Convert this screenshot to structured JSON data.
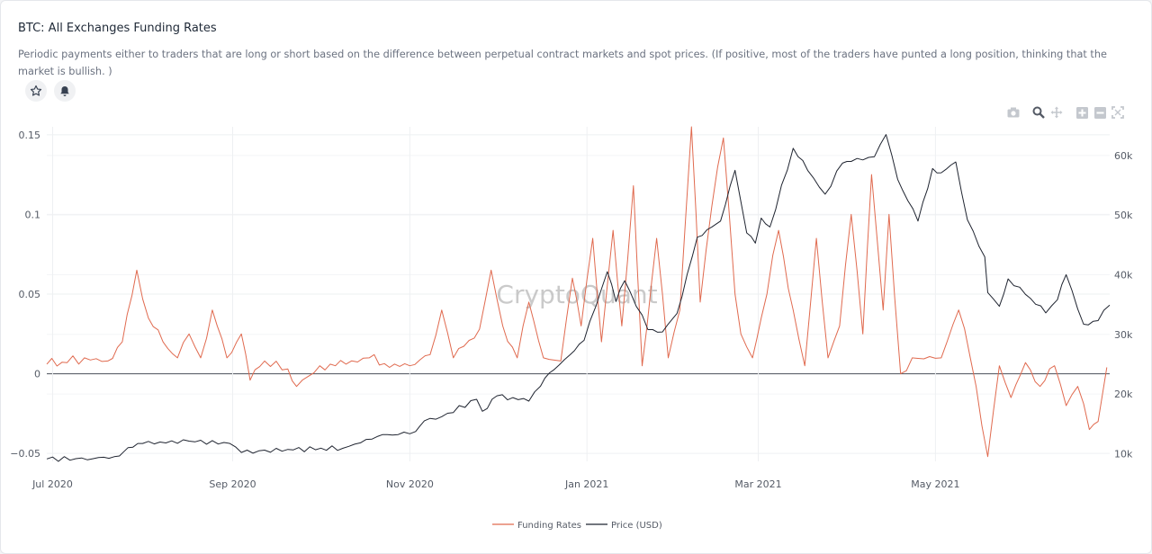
{
  "header": {
    "title": "BTC: All Exchanges Funding Rates",
    "description": "Periodic payments either to traders that are long or short based on the difference between perpetual contract markets and spot prices. (If positive, most of the traders have punted a long position, thinking that the market is bullish. )"
  },
  "actions": {
    "favorite_icon": "star-icon",
    "alert_icon": "bell-icon"
  },
  "toolbar": {
    "icons": [
      "camera-icon",
      "zoom-icon",
      "pan-icon",
      "zoom-in-icon",
      "zoom-out-icon",
      "autoscale-icon"
    ]
  },
  "watermark": "CryptoQuant",
  "colors": {
    "funding": "#e06a4f",
    "price": "#1f2430"
  },
  "chart_data": {
    "type": "line",
    "x_tick_labels": [
      "Jul 2020",
      "Sep 2020",
      "Nov 2020",
      "Jan 2021",
      "Mar 2021",
      "May 2021"
    ],
    "x_tick_dates": [
      "2020-07-01",
      "2020-09-01",
      "2020-11-01",
      "2021-01-01",
      "2021-03-01",
      "2021-05-01"
    ],
    "x_range": [
      "2020-06-29",
      "2021-06-30"
    ],
    "y_left": {
      "ticks": [
        -0.05,
        0,
        0.05,
        0.1,
        0.15
      ],
      "tick_labels": [
        "−0.05",
        "0",
        "0.05",
        "0.1",
        "0.15"
      ],
      "range": [
        -0.055,
        0.155
      ]
    },
    "y_right": {
      "ticks": [
        10000,
        20000,
        30000,
        40000,
        50000,
        60000
      ],
      "tick_labels": [
        "10k",
        "20k",
        "30k",
        "40k",
        "50k",
        "60k"
      ],
      "range": [
        8700,
        64800
      ]
    },
    "grid": true,
    "legend_position": "bottom-center",
    "series": [
      {
        "name": "Funding Rates",
        "axis": "left",
        "points": [
          [
            "2020-06-29",
            0.006
          ],
          [
            "2020-07-06",
            0.007
          ],
          [
            "2020-07-12",
            0.01
          ],
          [
            "2020-07-20",
            0.008
          ],
          [
            "2020-07-25",
            0.02
          ],
          [
            "2020-07-30",
            0.065
          ],
          [
            "2020-08-03",
            0.035
          ],
          [
            "2020-08-08",
            0.02
          ],
          [
            "2020-08-13",
            0.01
          ],
          [
            "2020-08-17",
            0.025
          ],
          [
            "2020-08-21",
            0.01
          ],
          [
            "2020-08-25",
            0.04
          ],
          [
            "2020-08-30",
            0.01
          ],
          [
            "2020-09-04",
            0.025
          ],
          [
            "2020-09-07",
            -0.004
          ],
          [
            "2020-09-12",
            0.008
          ],
          [
            "2020-09-20",
            0.003
          ],
          [
            "2020-09-23",
            -0.008
          ],
          [
            "2020-10-01",
            0.005
          ],
          [
            "2020-10-10",
            0.006
          ],
          [
            "2020-10-18",
            0.01
          ],
          [
            "2020-10-25",
            0.004
          ],
          [
            "2020-11-01",
            0.005
          ],
          [
            "2020-11-08",
            0.012
          ],
          [
            "2020-11-12",
            0.04
          ],
          [
            "2020-11-16",
            0.01
          ],
          [
            "2020-11-25",
            0.028
          ],
          [
            "2020-11-29",
            0.065
          ],
          [
            "2020-12-03",
            0.03
          ],
          [
            "2020-12-08",
            0.01
          ],
          [
            "2020-12-12",
            0.045
          ],
          [
            "2020-12-17",
            0.01
          ],
          [
            "2020-12-23",
            0.008
          ],
          [
            "2020-12-27",
            0.06
          ],
          [
            "2020-12-30",
            0.03
          ],
          [
            "2021-01-03",
            0.085
          ],
          [
            "2021-01-06",
            0.02
          ],
          [
            "2021-01-10",
            0.09
          ],
          [
            "2021-01-13",
            0.03
          ],
          [
            "2021-01-17",
            0.118
          ],
          [
            "2021-01-20",
            0.005
          ],
          [
            "2021-01-25",
            0.085
          ],
          [
            "2021-01-29",
            0.01
          ],
          [
            "2021-02-02",
            0.04
          ],
          [
            "2021-02-06",
            0.155
          ],
          [
            "2021-02-09",
            0.045
          ],
          [
            "2021-02-13",
            0.105
          ],
          [
            "2021-02-17",
            0.148
          ],
          [
            "2021-02-21",
            0.05
          ],
          [
            "2021-02-23",
            0.025
          ],
          [
            "2021-02-27",
            0.01
          ],
          [
            "2021-03-02",
            0.035
          ],
          [
            "2021-03-08",
            0.09
          ],
          [
            "2021-03-13",
            0.04
          ],
          [
            "2021-03-17",
            0.005
          ],
          [
            "2021-03-21",
            0.085
          ],
          [
            "2021-03-25",
            0.01
          ],
          [
            "2021-03-29",
            0.03
          ],
          [
            "2021-04-02",
            0.1
          ],
          [
            "2021-04-06",
            0.025
          ],
          [
            "2021-04-09",
            0.125
          ],
          [
            "2021-04-13",
            0.04
          ],
          [
            "2021-04-15",
            0.1
          ],
          [
            "2021-04-19",
            0.0
          ],
          [
            "2021-04-23",
            0.01
          ],
          [
            "2021-05-03",
            0.01
          ],
          [
            "2021-05-09",
            0.04
          ],
          [
            "2021-05-13",
            0.01
          ],
          [
            "2021-05-19",
            -0.052
          ],
          [
            "2021-05-23",
            0.005
          ],
          [
            "2021-05-27",
            -0.015
          ],
          [
            "2021-06-01",
            0.007
          ],
          [
            "2021-06-06",
            -0.008
          ],
          [
            "2021-06-11",
            0.005
          ],
          [
            "2021-06-15",
            -0.02
          ],
          [
            "2021-06-19",
            -0.008
          ],
          [
            "2021-06-23",
            -0.035
          ],
          [
            "2021-06-26",
            -0.03
          ],
          [
            "2021-06-29",
            0.004
          ]
        ]
      },
      {
        "name": "Price (USD)",
        "axis": "right",
        "points": [
          [
            "2020-06-29",
            9100
          ],
          [
            "2020-07-15",
            9150
          ],
          [
            "2020-07-24",
            9600
          ],
          [
            "2020-07-27",
            11000
          ],
          [
            "2020-08-01",
            11700
          ],
          [
            "2020-08-17",
            12100
          ],
          [
            "2020-08-31",
            11700
          ],
          [
            "2020-09-04",
            10200
          ],
          [
            "2020-09-20",
            10700
          ],
          [
            "2020-10-09",
            10900
          ],
          [
            "2020-10-21",
            12900
          ],
          [
            "2020-10-26",
            13100
          ],
          [
            "2020-11-03",
            13700
          ],
          [
            "2020-11-06",
            15500
          ],
          [
            "2020-11-12",
            16200
          ],
          [
            "2020-11-24",
            19100
          ],
          [
            "2020-11-26",
            17100
          ],
          [
            "2020-12-01",
            19700
          ],
          [
            "2020-12-12",
            18800
          ],
          [
            "2020-12-16",
            21300
          ],
          [
            "2020-12-19",
            23500
          ],
          [
            "2020-12-26",
            26500
          ],
          [
            "2020-12-31",
            29000
          ],
          [
            "2021-01-08",
            40500
          ],
          [
            "2021-01-11",
            35500
          ],
          [
            "2021-01-14",
            39000
          ],
          [
            "2021-01-22",
            30800
          ],
          [
            "2021-01-27",
            30400
          ],
          [
            "2021-02-01",
            33500
          ],
          [
            "2021-02-08",
            46300
          ],
          [
            "2021-02-13",
            48000
          ],
          [
            "2021-02-16",
            49000
          ],
          [
            "2021-02-21",
            57500
          ],
          [
            "2021-02-25",
            47000
          ],
          [
            "2021-02-28",
            45300
          ],
          [
            "2021-03-02",
            49500
          ],
          [
            "2021-03-05",
            48000
          ],
          [
            "2021-03-13",
            61200
          ],
          [
            "2021-03-18",
            57500
          ],
          [
            "2021-03-24",
            53500
          ],
          [
            "2021-03-30",
            58700
          ],
          [
            "2021-04-02",
            59000
          ],
          [
            "2021-04-10",
            59800
          ],
          [
            "2021-04-14",
            63500
          ],
          [
            "2021-04-18",
            56000
          ],
          [
            "2021-04-25",
            49000
          ],
          [
            "2021-04-30",
            57800
          ],
          [
            "2021-05-03",
            57100
          ],
          [
            "2021-05-08",
            58900
          ],
          [
            "2021-05-12",
            49200
          ],
          [
            "2021-05-18",
            43000
          ],
          [
            "2021-05-19",
            37000
          ],
          [
            "2021-05-23",
            34700
          ],
          [
            "2021-05-26",
            39300
          ],
          [
            "2021-06-01",
            36700
          ],
          [
            "2021-06-08",
            33600
          ],
          [
            "2021-06-12",
            35800
          ],
          [
            "2021-06-15",
            40000
          ],
          [
            "2021-06-21",
            31700
          ],
          [
            "2021-06-26",
            32300
          ],
          [
            "2021-06-30",
            34900
          ]
        ]
      }
    ]
  }
}
